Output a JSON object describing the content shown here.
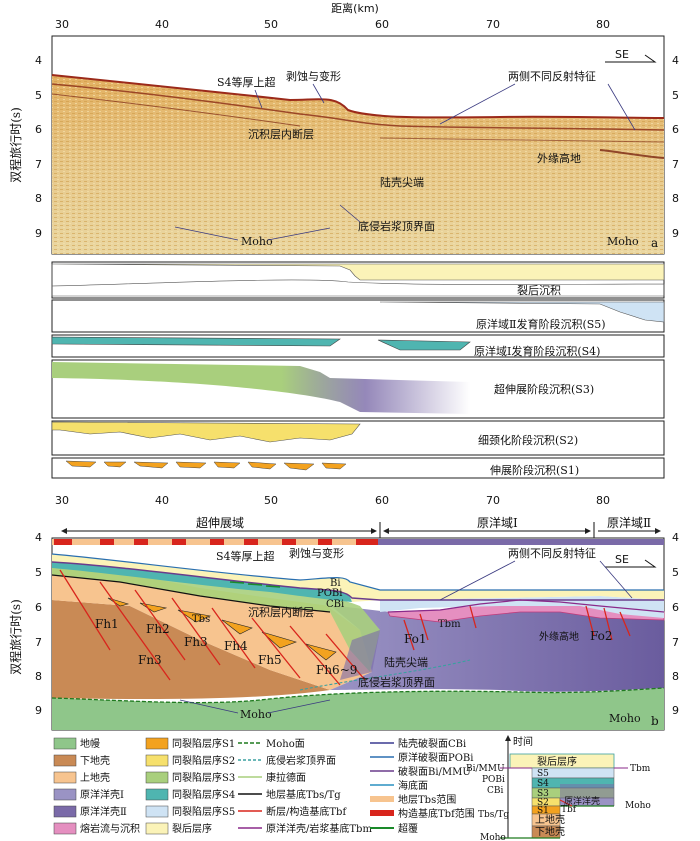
{
  "top_axis": {
    "title": "距离(km)",
    "ticks": [
      "30",
      "40",
      "50",
      "60",
      "70",
      "80"
    ]
  },
  "ylabel": "双程旅行时(s)",
  "yticks": [
    "4",
    "5",
    "6",
    "7",
    "8",
    "9"
  ],
  "direction": "SE",
  "panel_a": {
    "letter": "a",
    "labels": {
      "s4": "S4等厚上超",
      "erosion": "剥蚀与变形",
      "fault": "沉积层内断层",
      "two_sides": "两侧不同反射特征",
      "outer_high": "外缘高地",
      "tip": "陆壳尖端",
      "moho": "Moho",
      "moho_r": "Moho",
      "intrusive": "底侵岩浆顶界面"
    }
  },
  "strips": {
    "post_rift": "裂后沉积",
    "s5": "原洋域Ⅱ发育阶段沉积(S5)",
    "s4": "原洋域Ⅰ发育阶段沉积(S4)",
    "s3": "超伸展阶段沉积(S3)",
    "s2": "细颈化阶段沉积(S2)",
    "s1": "伸展阶段沉积(S1)"
  },
  "mid_axis": {
    "ticks": [
      "30",
      "40",
      "50",
      "60",
      "70",
      "80"
    ]
  },
  "domains": {
    "hyper": "超伸展域",
    "proto1": "原洋域Ⅰ",
    "proto2": "原洋域Ⅱ"
  },
  "panel_b": {
    "letter": "b",
    "labels": {
      "s4": "S4等厚上超",
      "erosion": "剥蚀与变形",
      "fault": "沉积层内断层",
      "two_sides": "两侧不同反射特征",
      "tip": "陆壳尖端",
      "intrusive": "底侵岩浆顶界面",
      "moho": "Moho",
      "moho_r": "Moho",
      "outer_high": "外缘高地",
      "bi": "Bi",
      "pobi": "POBi",
      "cbi": "CBi",
      "tbs": "Tbs",
      "tbm": "Tbm",
      "fh1": "Fh1",
      "fh2": "Fh2",
      "fh3": "Fh3",
      "fh4": "Fh4",
      "fh5": "Fh5",
      "fh69": "Fh6~9",
      "fn3": "Fn3",
      "fo1": "Fo1",
      "fo2": "Fo2"
    }
  },
  "legend": {
    "col1": [
      "地幔",
      "下地壳",
      "上地壳",
      "原洋洋壳Ⅰ",
      "原洋洋壳Ⅱ",
      "熔岩流与沉积"
    ],
    "col2": [
      "同裂陷层序S1",
      "同裂陷层序S2",
      "同裂陷层序S3",
      "同裂陷层序S4",
      "同裂陷层序S5",
      "裂后层序"
    ],
    "col3": [
      "Moho面",
      "底侵岩浆顶界面",
      "康拉德面",
      "地层基底Tbs/Tg",
      "断层/构造基底Tbf",
      "原洋洋壳/岩浆基底Tbm"
    ],
    "col4": [
      "陆壳破裂面CBi",
      "原洋破裂面POBi",
      "破裂面Bi/MMU",
      "海底面",
      "地层Tbs范围",
      "构造基底Tbf范围",
      "超覆"
    ]
  },
  "column": {
    "time": "时间",
    "post": "裂后层序",
    "s5": "S5",
    "s4": "S4",
    "s3": "S3",
    "s2": "S2",
    "s1": "S1",
    "oceanic": "原洋洋壳",
    "upper": "上地壳",
    "lower": "下地壳",
    "bimmu": "Bi/MMU",
    "pobi": "POBi",
    "cbi": "CBi",
    "tbstg": "Tbs/Tg",
    "moho": "Moho",
    "tbm": "Tbm",
    "tbf": "Tbf",
    "moho_r": "Moho"
  },
  "colors": {
    "mantle": "#8fc68a",
    "lower_crust": "#c98a55",
    "upper_crust": "#f7c48f",
    "oc1": "#9a93c4",
    "oc2": "#7a6aa8",
    "lava": "#e58fc0",
    "s1": "#f3a21f",
    "s2": "#f6e06c",
    "s3": "#a9cf7d",
    "s4": "#4fb5b0",
    "s5": "#cfe3f4",
    "post": "#fbf3b8"
  }
}
